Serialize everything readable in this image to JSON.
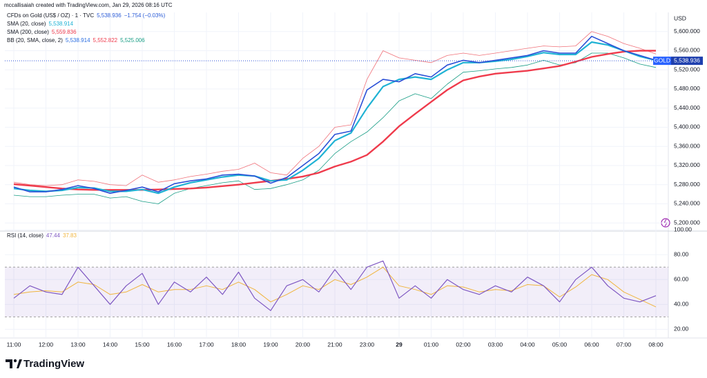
{
  "header": {
    "attribution": "mccallisaiah created with TradingView.com, Jan 29, 2026 08:16 UTC"
  },
  "chart_data": [
    {
      "type": "line",
      "y_unit": "USD",
      "categories": [
        "11:00",
        null,
        "12:00",
        null,
        "13:00",
        null,
        "14:00",
        null,
        "15:00",
        null,
        "16:00",
        null,
        "17:00",
        null,
        "18:00",
        null,
        "19:00",
        null,
        "20:00",
        null,
        "21:00",
        null,
        "23:00",
        null,
        "29",
        null,
        "01:00",
        null,
        "02:00",
        null,
        "03:00",
        null,
        "04:00",
        null,
        "05:00",
        null,
        "06:00",
        null,
        "07:00",
        null,
        "08:00"
      ],
      "series": [
        {
          "name": "CFDs on Gold (US$ / OZ) · 1 · TVC",
          "legend_values": [
            "5,538.936",
            "−1.754 (−0.03%)"
          ],
          "legend_colors": [
            "#2a5bd7",
            "#2a5bd7"
          ],
          "color": "#2a4fd6",
          "width": 1.6,
          "values": [
            5275,
            5265,
            5265,
            5270,
            5278,
            5272,
            5262,
            5268,
            5275,
            5265,
            5282,
            5288,
            5292,
            5300,
            5302,
            5298,
            5283,
            5295,
            5320,
            5345,
            5385,
            5392,
            5478,
            5500,
            5495,
            5512,
            5505,
            5530,
            5540,
            5535,
            5540,
            5545,
            5550,
            5560,
            5555,
            5555,
            5590,
            5575,
            5560,
            5550,
            5540
          ]
        },
        {
          "name": "SMA (20, close)",
          "legend_values": [
            "5,538.914"
          ],
          "legend_colors": [
            "#1fb2d4"
          ],
          "color": "#1fb2d4",
          "width": 2.2,
          "values": [
            5272,
            5268,
            5266,
            5268,
            5274,
            5273,
            5266,
            5266,
            5270,
            5262,
            5275,
            5284,
            5290,
            5296,
            5300,
            5298,
            5288,
            5290,
            5310,
            5335,
            5372,
            5388,
            5440,
            5485,
            5500,
            5505,
            5500,
            5520,
            5535,
            5535,
            5538,
            5542,
            5548,
            5556,
            5552,
            5552,
            5578,
            5572,
            5560,
            5548,
            5540
          ]
        },
        {
          "name": "SMA (200, close)",
          "legend_values": [
            "5,559.836"
          ],
          "legend_colors": [
            "#ef3b4c"
          ],
          "color": "#ef3b4c",
          "width": 2.4,
          "values": [
            5281,
            5278,
            5275,
            5272,
            5270,
            5269,
            5269,
            5269,
            5269,
            5270,
            5271,
            5272,
            5274,
            5277,
            5280,
            5284,
            5288,
            5292,
            5297,
            5305,
            5318,
            5328,
            5342,
            5370,
            5402,
            5428,
            5453,
            5478,
            5498,
            5506,
            5512,
            5515,
            5518,
            5523,
            5528,
            5537,
            5547,
            5553,
            5558,
            5560,
            5560
          ]
        },
        {
          "name": "BB (20, SMA, close, 2)",
          "legend_values": [
            "5,538.914",
            "5,552.822",
            "5,525.006"
          ],
          "legend_colors": [
            "#2a6de0",
            "#ef3b4c",
            "#169c84"
          ],
          "color": "#f07078",
          "width": 0.8,
          "values": [
            5285,
            5280,
            5278,
            5280,
            5290,
            5287,
            5280,
            5278,
            5300,
            5285,
            5290,
            5297,
            5302,
            5308,
            5312,
            5325,
            5305,
            5300,
            5335,
            5360,
            5400,
            5405,
            5500,
            5560,
            5545,
            5540,
            5535,
            5550,
            5555,
            5550,
            5555,
            5560,
            5565,
            5570,
            5568,
            5570,
            5600,
            5590,
            5575,
            5565,
            5553
          ]
        },
        {
          "color": "#169c84",
          "width": 0.8,
          "values": [
            5258,
            5255,
            5255,
            5258,
            5260,
            5260,
            5252,
            5255,
            5245,
            5240,
            5262,
            5272,
            5278,
            5284,
            5288,
            5270,
            5272,
            5280,
            5290,
            5310,
            5345,
            5370,
            5390,
            5420,
            5455,
            5470,
            5460,
            5490,
            5515,
            5518,
            5522,
            5525,
            5530,
            5540,
            5530,
            5535,
            5555,
            5555,
            5545,
            5532,
            5525
          ]
        }
      ],
      "ylim": [
        5183,
        5640
      ],
      "yticks": [
        {
          "value": 5200,
          "label": "5,200.000"
        },
        {
          "value": 5240,
          "label": "5,240.000"
        },
        {
          "value": 5280,
          "label": "5,280.000"
        },
        {
          "value": 5320,
          "label": "5,320.000"
        },
        {
          "value": 5360,
          "label": "5,360.000"
        },
        {
          "value": 5400,
          "label": "5,400.000"
        },
        {
          "value": 5440,
          "label": "5,440.000"
        },
        {
          "value": 5480,
          "label": "5,480.000"
        },
        {
          "value": 5520,
          "label": "5,520.000"
        },
        {
          "value": 5560,
          "label": "5,560.000"
        },
        {
          "value": 5600,
          "label": "5,600.000"
        }
      ],
      "price_tag": {
        "name": "GOLD",
        "value": 5538.936,
        "label": "5,538.936"
      },
      "grid": true
    },
    {
      "type": "line",
      "series": [
        {
          "name": "RSI (14, close)",
          "legend_values": [
            "47.44",
            "37.83"
          ],
          "legend_colors": [
            "#7e57c2",
            "#f0b43c"
          ],
          "color": "#7e57c2",
          "width": 1.2,
          "values": [
            45,
            55,
            50,
            48,
            70,
            55,
            40,
            55,
            65,
            40,
            58,
            50,
            62,
            48,
            66,
            45,
            35,
            55,
            60,
            50,
            68,
            52,
            70,
            75,
            45,
            55,
            45,
            60,
            52,
            48,
            55,
            50,
            62,
            55,
            42,
            60,
            70,
            55,
            45,
            42,
            47
          ]
        },
        {
          "color": "#f0b43c",
          "width": 1,
          "values": [
            48,
            50,
            51,
            50,
            58,
            56,
            48,
            50,
            56,
            50,
            52,
            52,
            55,
            52,
            58,
            52,
            42,
            48,
            55,
            52,
            60,
            56,
            62,
            70,
            55,
            52,
            48,
            55,
            54,
            50,
            52,
            51,
            56,
            55,
            46,
            54,
            64,
            60,
            50,
            44,
            38
          ]
        }
      ],
      "bands": [
        30,
        70
      ],
      "ylim": [
        13,
        99
      ],
      "yticks": [
        {
          "value": 20,
          "label": "20.00"
        },
        {
          "value": 40,
          "label": "40.00"
        },
        {
          "value": 60,
          "label": "60.00"
        },
        {
          "value": 80,
          "label": "80.00"
        },
        {
          "value": 100,
          "label": "100.00"
        }
      ],
      "grid": true
    }
  ],
  "footer": {
    "brand": "TradingView"
  }
}
